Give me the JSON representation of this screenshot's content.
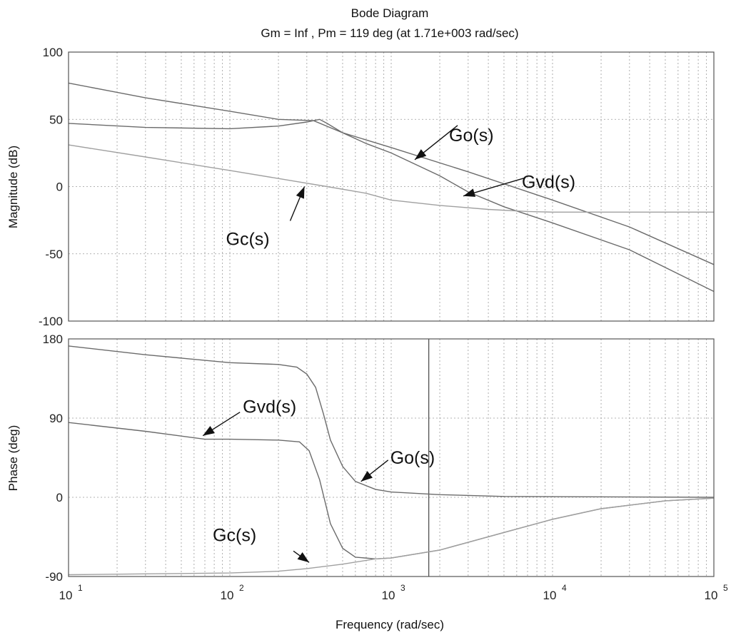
{
  "chart_data": {
    "type": "line",
    "title": "Bode Diagram",
    "subtitle": "Gm = Inf ,  Pm = 119 deg (at 1.71e+003 rad/sec)",
    "crossover_frequency": 1710,
    "xlabel": "Frequency   (rad/sec)",
    "xscale": "log",
    "xlim": [
      10,
      100000
    ],
    "x_ticks": [
      {
        "base": "10",
        "exp": "1"
      },
      {
        "base": "10",
        "exp": "2"
      },
      {
        "base": "10",
        "exp": "3"
      },
      {
        "base": "10",
        "exp": "4"
      },
      {
        "base": "10",
        "exp": "5"
      }
    ],
    "panels": [
      {
        "name": "magnitude",
        "ylabel": "Magnitude (dB)",
        "ylim": [
          -100,
          100
        ],
        "y_ticks": [
          100,
          50,
          0,
          -50,
          -100
        ],
        "y_tick_labels": [
          "100",
          "50",
          "0",
          "-50",
          "-100"
        ],
        "series": [
          {
            "name": "Go(s)",
            "points": [
              [
                10,
                77
              ],
              [
                30,
                66
              ],
              [
                100,
                56
              ],
              [
                200,
                50
              ],
              [
                330,
                49
              ],
              [
                500,
                40
              ],
              [
                1000,
                29
              ],
              [
                3000,
                11
              ],
              [
                10000,
                -10
              ],
              [
                30000,
                -30
              ],
              [
                100000,
                -58
              ]
            ]
          },
          {
            "name": "Gvd(s)",
            "points": [
              [
                10,
                47
              ],
              [
                30,
                44
              ],
              [
                100,
                43
              ],
              [
                200,
                45
              ],
              [
                300,
                48
              ],
              [
                360,
                50
              ],
              [
                400,
                47
              ],
              [
                500,
                40
              ],
              [
                700,
                32
              ],
              [
                1000,
                25
              ],
              [
                2000,
                8
              ],
              [
                3000,
                -4
              ],
              [
                5000,
                -15
              ],
              [
                10000,
                -27
              ],
              [
                30000,
                -47
              ],
              [
                100000,
                -78
              ]
            ]
          },
          {
            "name": "Gc(s)",
            "points": [
              [
                10,
                31
              ],
              [
                30,
                22
              ],
              [
                100,
                12
              ],
              [
                200,
                6
              ],
              [
                400,
                0
              ],
              [
                700,
                -5
              ],
              [
                1000,
                -10
              ],
              [
                2000,
                -14
              ],
              [
                4000,
                -17
              ],
              [
                7000,
                -18.5
              ],
              [
                10000,
                -19
              ],
              [
                100000,
                -19
              ]
            ]
          }
        ],
        "annotations": [
          {
            "label": "Go(s)",
            "target": [
              1400,
              20
            ]
          },
          {
            "label": "Gvd(s)",
            "target": [
              2800,
              -7
            ]
          },
          {
            "label": "Gc(s)",
            "target": [
              290,
              0
            ]
          }
        ]
      },
      {
        "name": "phase",
        "ylabel": "Phase (deg)",
        "ylim": [
          -90,
          180
        ],
        "y_ticks": [
          180,
          90,
          0,
          -90
        ],
        "y_tick_labels": [
          "180",
          "90",
          "0",
          "-90"
        ],
        "series": [
          {
            "name": "Go(s)",
            "points": [
              [
                10,
                172
              ],
              [
                30,
                162
              ],
              [
                100,
                153
              ],
              [
                200,
                151
              ],
              [
                260,
                148
              ],
              [
                300,
                140
              ],
              [
                340,
                125
              ],
              [
                380,
                95
              ],
              [
                420,
                65
              ],
              [
                500,
                35
              ],
              [
                600,
                18
              ],
              [
                800,
                9
              ],
              [
                1000,
                6
              ],
              [
                2000,
                3
              ],
              [
                5000,
                1
              ],
              [
                100000,
                0
              ]
            ]
          },
          {
            "name": "Gvd(s)",
            "points": [
              [
                10,
                85
              ],
              [
                30,
                75
              ],
              [
                70,
                66
              ],
              [
                100,
                66
              ],
              [
                200,
                65
              ],
              [
                270,
                63
              ],
              [
                310,
                53
              ],
              [
                360,
                20
              ],
              [
                420,
                -30
              ],
              [
                500,
                -58
              ],
              [
                600,
                -68
              ],
              [
                800,
                -70
              ],
              [
                1000,
                -69
              ],
              [
                2000,
                -60
              ],
              [
                5000,
                -40
              ],
              [
                10000,
                -25
              ],
              [
                20000,
                -13
              ],
              [
                50000,
                -4
              ],
              [
                100000,
                -1
              ]
            ]
          },
          {
            "name": "Gc(s)",
            "points": [
              [
                10,
                -88
              ],
              [
                30,
                -87
              ],
              [
                100,
                -86
              ],
              [
                200,
                -84
              ],
              [
                300,
                -81
              ],
              [
                500,
                -76
              ],
              [
                800,
                -70
              ],
              [
                1000,
                -69
              ],
              [
                2000,
                -60
              ],
              [
                5000,
                -40
              ],
              [
                10000,
                -25
              ],
              [
                20000,
                -13
              ],
              [
                50000,
                -4
              ],
              [
                100000,
                -1
              ]
            ]
          }
        ],
        "annotations": [
          {
            "label": "Gvd(s)",
            "target": [
              68,
              70
            ]
          },
          {
            "label": "Go(s)",
            "target": [
              650,
              18
            ]
          },
          {
            "label": "Gc(s)",
            "target": [
              310,
              -74
            ]
          }
        ]
      }
    ]
  }
}
